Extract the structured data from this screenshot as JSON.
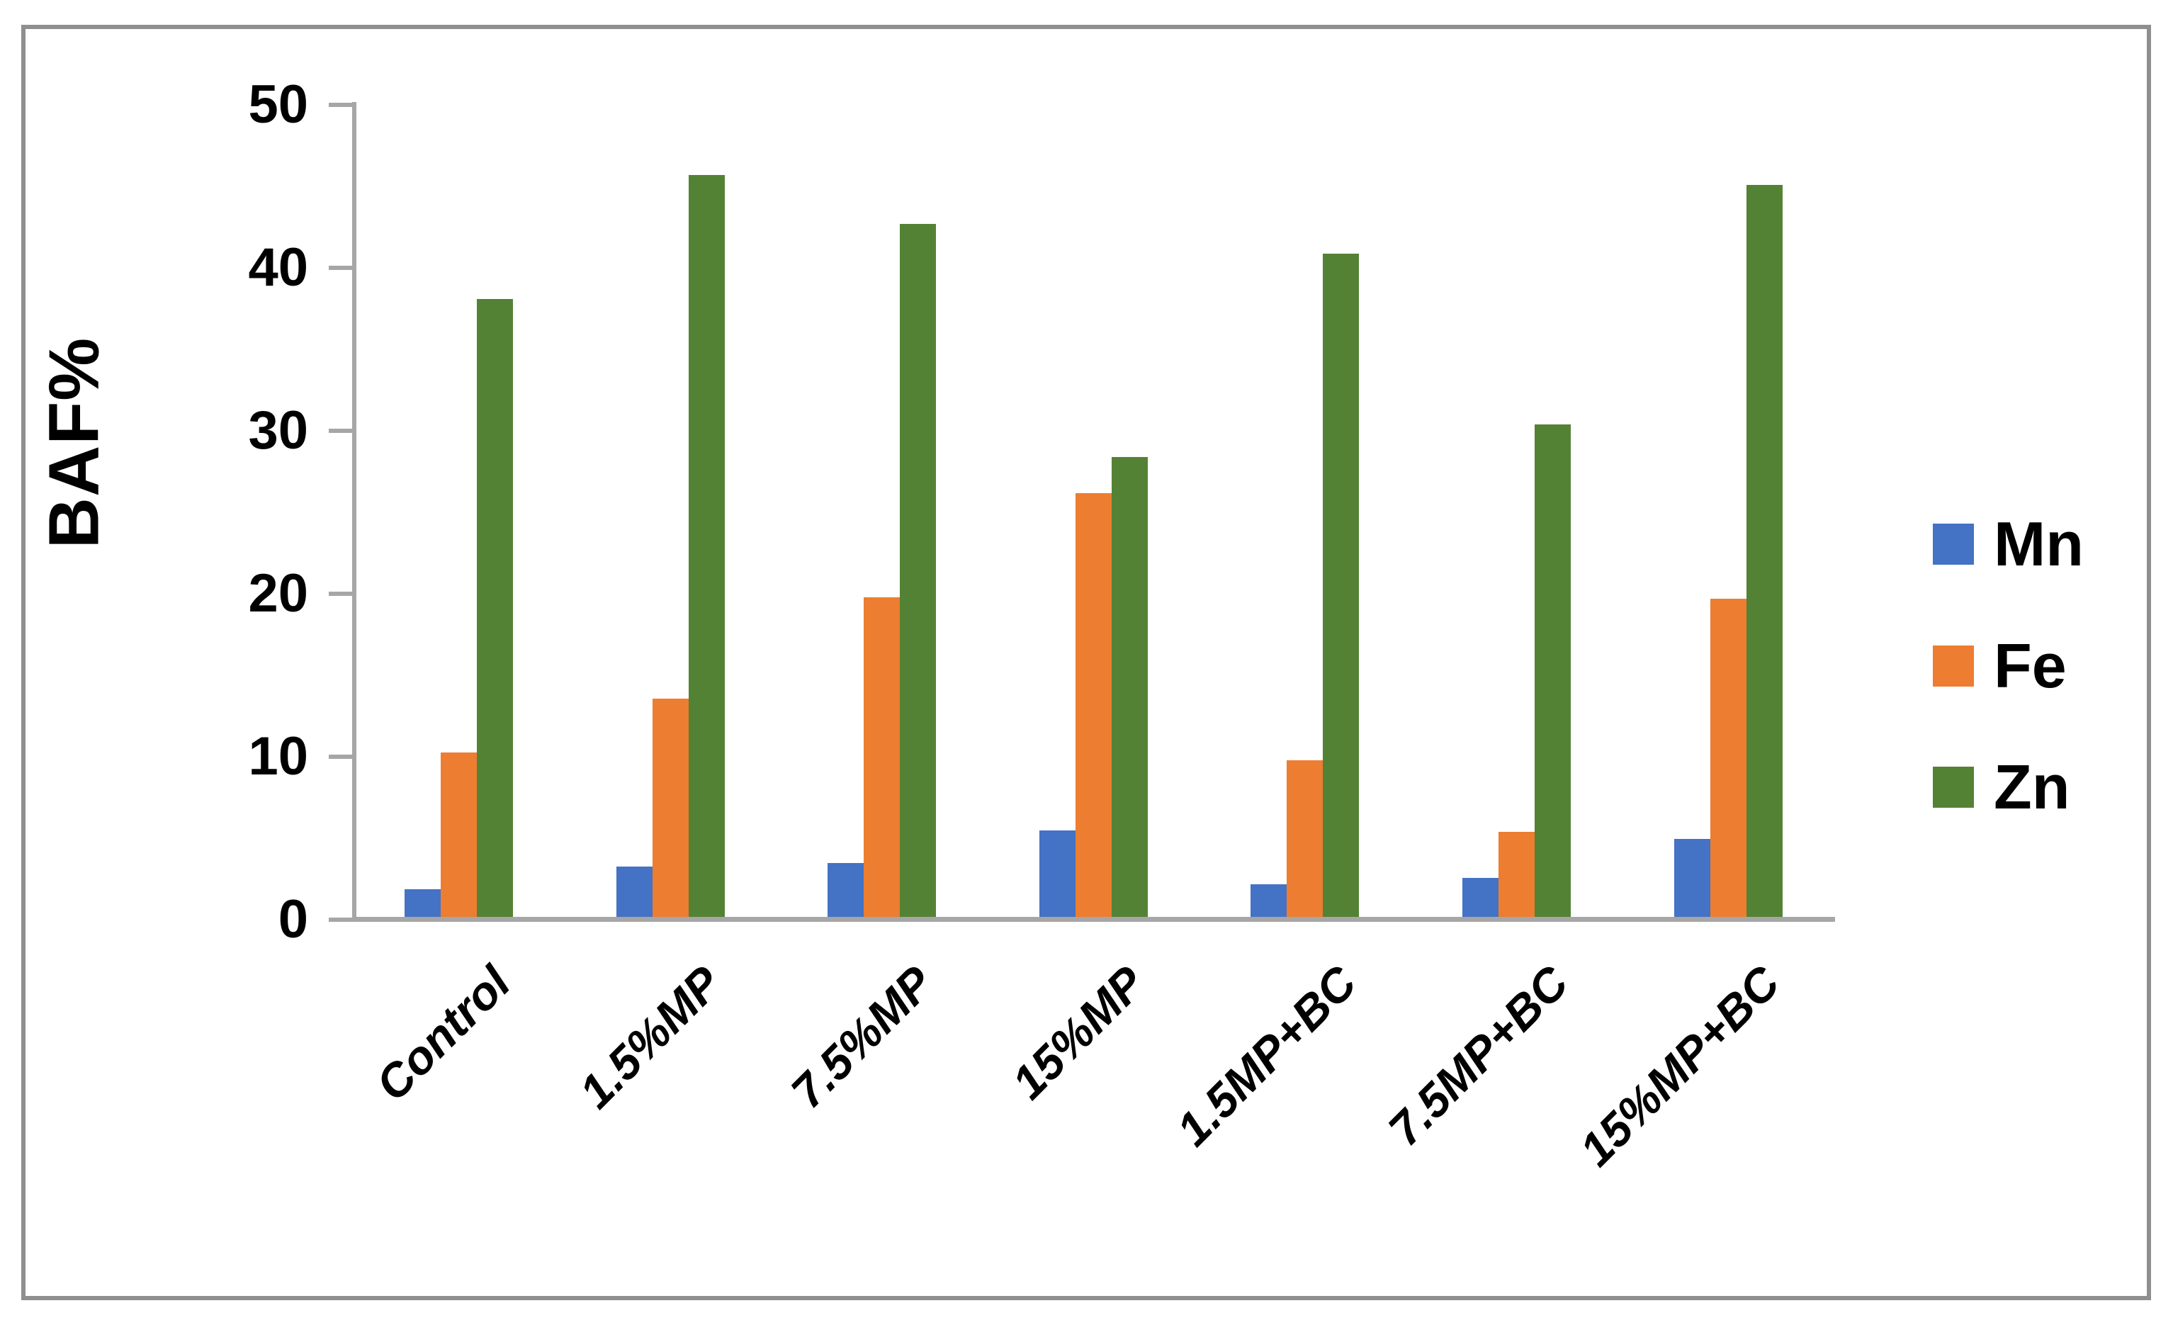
{
  "figure": {
    "type_note": "grouped vertical bar chart with gray plot border",
    "border_color": "#8f8f8f",
    "axis_color": "#a6a6a6",
    "background": "#ffffff"
  },
  "chart_data": {
    "type": "bar",
    "title": "",
    "xlabel": "",
    "ylabel": "BAF%",
    "ylim": [
      0,
      50
    ],
    "yticks": [
      0,
      10,
      20,
      30,
      40,
      50
    ],
    "grid": false,
    "legend_position": "right",
    "categories": [
      "Control",
      "1.5%MP",
      "7.5%MP",
      "15%MP",
      "1.5MP+BC",
      "7.5MP+BC",
      "15%MP+BC"
    ],
    "series": [
      {
        "name": "Mn",
        "color": "#4472c4",
        "values": [
          1.7,
          3.1,
          3.3,
          5.3,
          2.0,
          2.4,
          4.8
        ]
      },
      {
        "name": "Fe",
        "color": "#ed7d31",
        "values": [
          10.1,
          13.4,
          19.6,
          26.0,
          9.6,
          5.2,
          19.5
        ]
      },
      {
        "name": "Zn",
        "color": "#548235",
        "values": [
          37.9,
          45.5,
          42.5,
          28.2,
          40.7,
          30.2,
          44.9
        ]
      }
    ]
  }
}
